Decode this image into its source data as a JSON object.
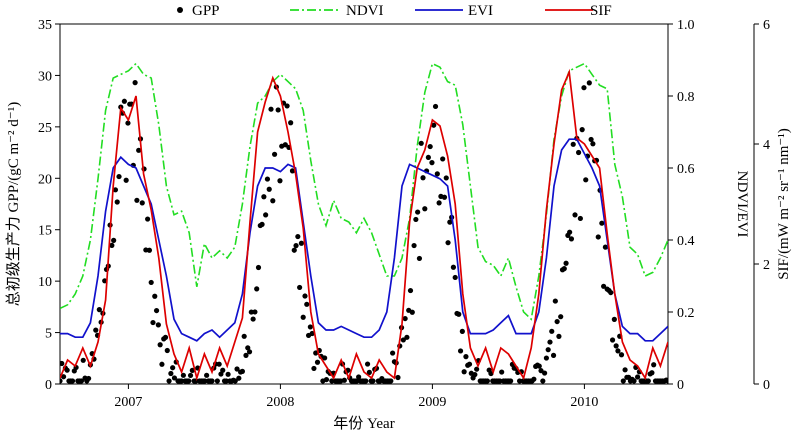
{
  "chart_data": {
    "type": "line",
    "legend": {
      "placement": "top",
      "entries": [
        {
          "label": "GPP",
          "marker": "dot",
          "color": "#000000"
        },
        {
          "label": "NDVI",
          "style": "dash-dot",
          "color": "#22dd22"
        },
        {
          "label": "EVI",
          "style": "solid",
          "color": "#1111cc"
        },
        {
          "label": "SIF",
          "style": "solid",
          "color": "#dd0000"
        }
      ]
    },
    "x_axis": {
      "label": "年份 Year",
      "range": [
        2006.55,
        2010.55
      ],
      "ticks": [
        2007,
        2008,
        2009,
        2010
      ],
      "tick_labels": [
        "2007",
        "2008",
        "2009",
        "2010"
      ]
    },
    "y_axes": {
      "gpp": {
        "label": "总初级生产力 GPP/(gC m⁻² d⁻¹)",
        "range": [
          0,
          35
        ],
        "ticks": [
          0,
          5,
          10,
          15,
          20,
          25,
          30,
          35
        ]
      },
      "index": {
        "label": "NDVI/EVI",
        "range": [
          0,
          1.0
        ],
        "ticks": [
          0,
          0.2,
          0.4,
          0.6,
          0.8,
          1.0
        ],
        "tick_labels": [
          "0",
          "0.2",
          "0.4",
          "0.6",
          "0.8",
          "1.0"
        ]
      },
      "sif": {
        "label": "SIF/(mW m⁻² sr⁻¹ nm⁻¹)",
        "range": [
          0,
          6
        ],
        "ticks": [
          0,
          2,
          4,
          6
        ]
      }
    },
    "gpp_model": {
      "note_points_per_year": 70,
      "peaks": [
        [
          2007.0,
          26
        ],
        [
          2008.0,
          25
        ],
        [
          2009.0,
          23
        ],
        [
          2010.0,
          23
        ]
      ],
      "baseline": 0.3,
      "season_sigma": 0.11
    },
    "series": [
      {
        "name": "NDVI",
        "axis": "index",
        "color": "#22dd22",
        "x": [
          2006.55,
          2006.6,
          2006.65,
          2006.7,
          2006.75,
          2006.8,
          2006.85,
          2006.9,
          2006.95,
          2007.0,
          2007.05,
          2007.1,
          2007.15,
          2007.2,
          2007.25,
          2007.3,
          2007.35,
          2007.4,
          2007.45,
          2007.5,
          2007.55,
          2007.6,
          2007.65,
          2007.7,
          2007.75,
          2007.8,
          2007.85,
          2007.9,
          2007.95,
          2008.0,
          2008.05,
          2008.1,
          2008.15,
          2008.2,
          2008.25,
          2008.3,
          2008.35,
          2008.4,
          2008.45,
          2008.5,
          2008.55,
          2008.6,
          2008.65,
          2008.7,
          2008.75,
          2008.8,
          2008.85,
          2008.9,
          2008.95,
          2009.0,
          2009.05,
          2009.1,
          2009.15,
          2009.2,
          2009.25,
          2009.3,
          2009.35,
          2009.4,
          2009.45,
          2009.5,
          2009.55,
          2009.6,
          2009.65,
          2009.7,
          2009.75,
          2009.8,
          2009.85,
          2009.9,
          2009.95,
          2010.0,
          2010.05,
          2010.1,
          2010.15,
          2010.2,
          2010.25,
          2010.3,
          2010.35,
          2010.4,
          2010.45,
          2010.5,
          2010.55
        ],
        "values": [
          0.21,
          0.22,
          0.25,
          0.3,
          0.4,
          0.57,
          0.76,
          0.85,
          0.86,
          0.87,
          0.89,
          0.86,
          0.85,
          0.72,
          0.55,
          0.47,
          0.48,
          0.42,
          0.27,
          0.39,
          0.35,
          0.37,
          0.35,
          0.38,
          0.5,
          0.66,
          0.78,
          0.8,
          0.84,
          0.86,
          0.84,
          0.82,
          0.76,
          0.62,
          0.5,
          0.44,
          0.51,
          0.46,
          0.45,
          0.42,
          0.46,
          0.42,
          0.36,
          0.3,
          0.3,
          0.35,
          0.46,
          0.66,
          0.81,
          0.89,
          0.88,
          0.84,
          0.83,
          0.72,
          0.55,
          0.38,
          0.34,
          0.33,
          0.3,
          0.35,
          0.27,
          0.2,
          0.18,
          0.3,
          0.47,
          0.68,
          0.8,
          0.87,
          0.88,
          0.89,
          0.86,
          0.83,
          0.82,
          0.61,
          0.52,
          0.38,
          0.36,
          0.3,
          0.31,
          0.35,
          0.4
        ]
      },
      {
        "name": "EVI",
        "axis": "index",
        "color": "#1111cc",
        "x": [
          2006.55,
          2006.6,
          2006.65,
          2006.7,
          2006.75,
          2006.8,
          2006.85,
          2006.9,
          2006.95,
          2007.0,
          2007.05,
          2007.1,
          2007.15,
          2007.2,
          2007.25,
          2007.3,
          2007.35,
          2007.4,
          2007.45,
          2007.5,
          2007.55,
          2007.6,
          2007.65,
          2007.7,
          2007.75,
          2007.8,
          2007.85,
          2007.9,
          2007.95,
          2008.0,
          2008.05,
          2008.1,
          2008.15,
          2008.2,
          2008.25,
          2008.3,
          2008.35,
          2008.4,
          2008.45,
          2008.5,
          2008.55,
          2008.6,
          2008.65,
          2008.7,
          2008.75,
          2008.8,
          2008.85,
          2008.9,
          2008.95,
          2009.0,
          2009.05,
          2009.1,
          2009.15,
          2009.2,
          2009.25,
          2009.3,
          2009.35,
          2009.4,
          2009.45,
          2009.5,
          2009.55,
          2009.6,
          2009.65,
          2009.7,
          2009.75,
          2009.8,
          2009.85,
          2009.9,
          2009.95,
          2010.0,
          2010.05,
          2010.1,
          2010.15,
          2010.2,
          2010.25,
          2010.3,
          2010.35,
          2010.4,
          2010.45,
          2010.5,
          2010.55
        ],
        "values": [
          0.14,
          0.14,
          0.13,
          0.13,
          0.17,
          0.3,
          0.48,
          0.6,
          0.63,
          0.61,
          0.6,
          0.55,
          0.5,
          0.4,
          0.3,
          0.18,
          0.14,
          0.13,
          0.12,
          0.14,
          0.15,
          0.13,
          0.15,
          0.17,
          0.25,
          0.42,
          0.55,
          0.6,
          0.6,
          0.59,
          0.61,
          0.6,
          0.45,
          0.3,
          0.17,
          0.15,
          0.15,
          0.16,
          0.15,
          0.14,
          0.13,
          0.13,
          0.15,
          0.2,
          0.35,
          0.55,
          0.61,
          0.6,
          0.59,
          0.58,
          0.57,
          0.55,
          0.4,
          0.2,
          0.14,
          0.14,
          0.14,
          0.15,
          0.17,
          0.19,
          0.14,
          0.14,
          0.14,
          0.2,
          0.35,
          0.55,
          0.65,
          0.68,
          0.68,
          0.64,
          0.6,
          0.55,
          0.4,
          0.25,
          0.16,
          0.14,
          0.14,
          0.12,
          0.12,
          0.14,
          0.16
        ]
      },
      {
        "name": "SIF",
        "axis": "sif",
        "color": "#dd0000",
        "x": [
          2006.55,
          2006.6,
          2006.65,
          2006.7,
          2006.75,
          2006.8,
          2006.85,
          2006.9,
          2006.95,
          2007.0,
          2007.05,
          2007.1,
          2007.15,
          2007.2,
          2007.25,
          2007.3,
          2007.35,
          2007.4,
          2007.45,
          2007.5,
          2007.55,
          2007.6,
          2007.65,
          2007.7,
          2007.75,
          2007.8,
          2007.85,
          2007.9,
          2007.95,
          2008.0,
          2008.05,
          2008.1,
          2008.15,
          2008.2,
          2008.25,
          2008.3,
          2008.35,
          2008.4,
          2008.45,
          2008.5,
          2008.55,
          2008.6,
          2008.65,
          2008.7,
          2008.75,
          2008.8,
          2008.85,
          2008.9,
          2008.95,
          2009.0,
          2009.05,
          2009.1,
          2009.15,
          2009.2,
          2009.25,
          2009.3,
          2009.35,
          2009.4,
          2009.45,
          2009.5,
          2009.55,
          2009.6,
          2009.65,
          2009.7,
          2009.75,
          2009.8,
          2009.85,
          2009.9,
          2009.95,
          2010.0,
          2010.05,
          2010.1,
          2010.15,
          2010.2,
          2010.25,
          2010.3,
          2010.35,
          2010.4,
          2010.45,
          2010.5,
          2010.55
        ],
        "values": [
          0.1,
          0.4,
          0.3,
          0.6,
          0.3,
          0.7,
          1.4,
          3.3,
          4.6,
          4.4,
          4.8,
          3.5,
          2.9,
          2.1,
          1.0,
          0.5,
          0.2,
          0.6,
          0.1,
          0.5,
          0.2,
          0.6,
          0.3,
          0.7,
          1.1,
          2.7,
          4.2,
          4.7,
          5.1,
          4.8,
          4.2,
          3.5,
          2.6,
          1.2,
          0.5,
          0.3,
          0.1,
          0.4,
          0.1,
          0.5,
          0.2,
          0.1,
          0.4,
          0.2,
          0.1,
          1.0,
          2.7,
          3.6,
          3.9,
          4.4,
          4.3,
          3.8,
          3.0,
          1.5,
          0.6,
          0.3,
          0.6,
          0.2,
          0.6,
          0.5,
          0.3,
          0.1,
          0.6,
          1.5,
          2.9,
          4.0,
          4.9,
          5.2,
          4.1,
          4.0,
          3.8,
          3.6,
          2.5,
          1.5,
          0.7,
          0.4,
          0.3,
          0.1,
          0.6,
          0.3,
          0.7
        ]
      }
    ]
  }
}
